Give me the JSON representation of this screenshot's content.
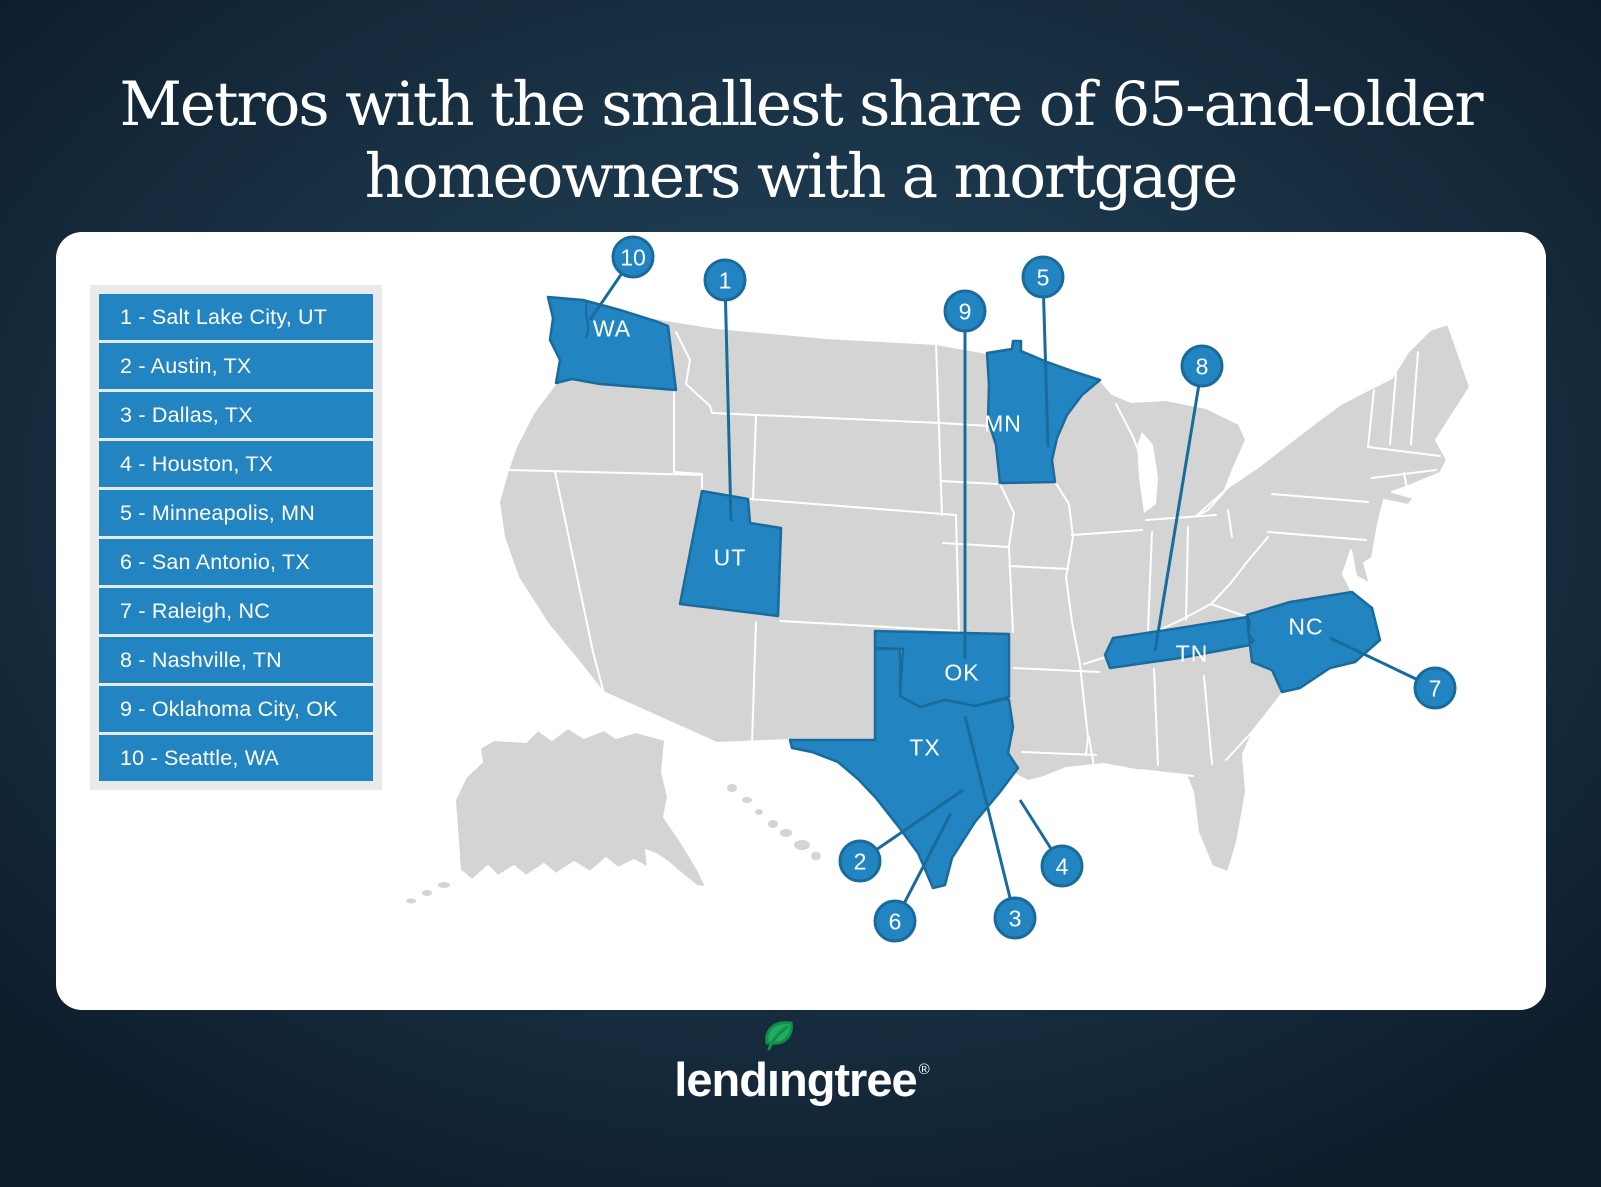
{
  "title": {
    "line1": "Metros with the smallest share of 65-and-older",
    "line2": "homeowners with a mortgage"
  },
  "legend": {
    "items": [
      "1 - Salt Lake City, UT",
      "2 - Austin, TX",
      "3 - Dallas, TX",
      "4 - Houston, TX",
      "5 - Minneapolis, MN",
      "6 - San Antonio, TX",
      "7 - Raleigh, NC",
      "8 - Nashville, TN",
      "9 - Oklahoma City, OK",
      "10 - Seattle, WA"
    ]
  },
  "map": {
    "highlighted_states": [
      "WA",
      "UT",
      "MN",
      "OK",
      "TX",
      "TN",
      "NC"
    ],
    "state_labels": [
      {
        "id": "WA",
        "text": "WA"
      },
      {
        "id": "UT",
        "text": "UT"
      },
      {
        "id": "MN",
        "text": "MN"
      },
      {
        "id": "OK",
        "text": "OK"
      },
      {
        "id": "TX",
        "text": "TX"
      },
      {
        "id": "TN",
        "text": "TN"
      },
      {
        "id": "NC",
        "text": "NC"
      }
    ],
    "callouts": [
      {
        "number": "1",
        "metro": "Salt Lake City, UT",
        "state": "UT"
      },
      {
        "number": "2",
        "metro": "Austin, TX",
        "state": "TX"
      },
      {
        "number": "3",
        "metro": "Dallas, TX",
        "state": "TX"
      },
      {
        "number": "4",
        "metro": "Houston, TX",
        "state": "TX"
      },
      {
        "number": "5",
        "metro": "Minneapolis, MN",
        "state": "MN"
      },
      {
        "number": "6",
        "metro": "San Antonio, TX",
        "state": "TX"
      },
      {
        "number": "7",
        "metro": "Raleigh, NC",
        "state": "NC"
      },
      {
        "number": "8",
        "metro": "Nashville, TN",
        "state": "TN"
      },
      {
        "number": "9",
        "metro": "Oklahoma City, OK",
        "state": "OK"
      },
      {
        "number": "10",
        "metro": "Seattle, WA",
        "state": "WA"
      }
    ]
  },
  "logo": {
    "part1": "lend",
    "i_char": "ı",
    "part2": "ngtree",
    "registered": "®"
  },
  "colors": {
    "highlight_blue": "#2285c2",
    "dark_blue": "#196b9c",
    "state_gray": "#d4d4d4",
    "legend_bg": "#e9eaeb",
    "card_white": "#ffffff",
    "leaf_green": "#1fae5e",
    "leaf_dark_green": "#148d4c"
  }
}
